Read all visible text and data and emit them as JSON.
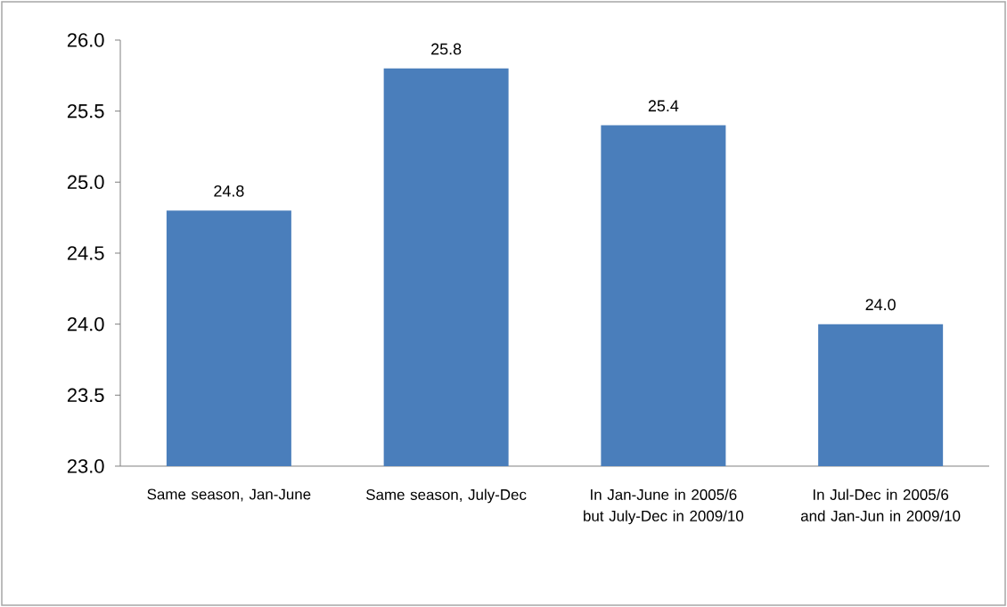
{
  "chart_data": {
    "type": "bar",
    "categories": [
      "Same season, Jan-June",
      "Same season, July-Dec",
      "In Jan-June in 2005/6 but July-Dec in 2009/10",
      "In Jul-Dec in 2005/6 and Jan-Jun in 2009/10"
    ],
    "values": [
      24.8,
      25.8,
      25.4,
      24.0
    ],
    "value_labels": [
      "24.8",
      "25.8",
      "25.4",
      "24.0"
    ],
    "color": "#4a7ebb",
    "ylim": [
      23,
      26
    ],
    "yticks": [
      {
        "value": 23,
        "label": "23.0"
      },
      {
        "value": 23.5,
        "label": "23.5"
      },
      {
        "value": 24,
        "label": "24.0"
      },
      {
        "value": 24.5,
        "label": "24.5"
      },
      {
        "value": 25,
        "label": "25.0"
      },
      {
        "value": 25.5,
        "label": "25.5"
      },
      {
        "value": 26,
        "label": "26.0"
      }
    ],
    "grid": false
  }
}
